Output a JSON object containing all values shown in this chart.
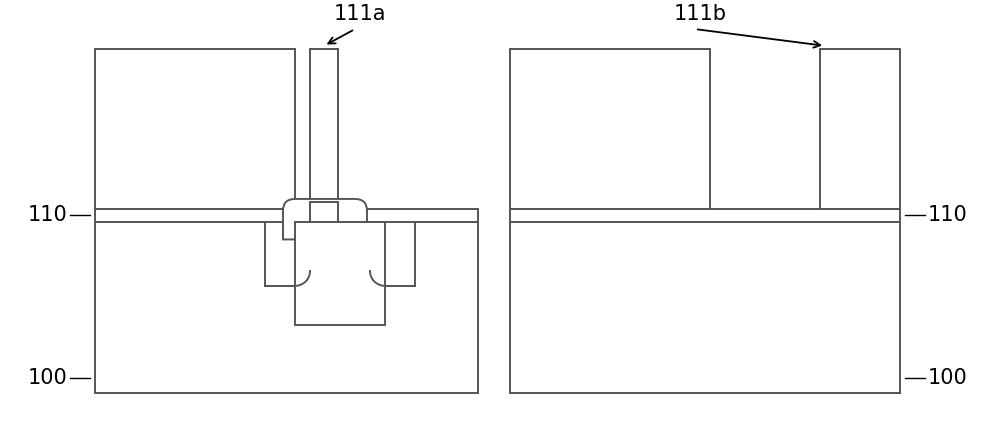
{
  "bg_color": "#ffffff",
  "line_color": "#555555",
  "line_width": 1.4,
  "fig_width": 10.0,
  "fig_height": 4.34,
  "dpi": 100
}
